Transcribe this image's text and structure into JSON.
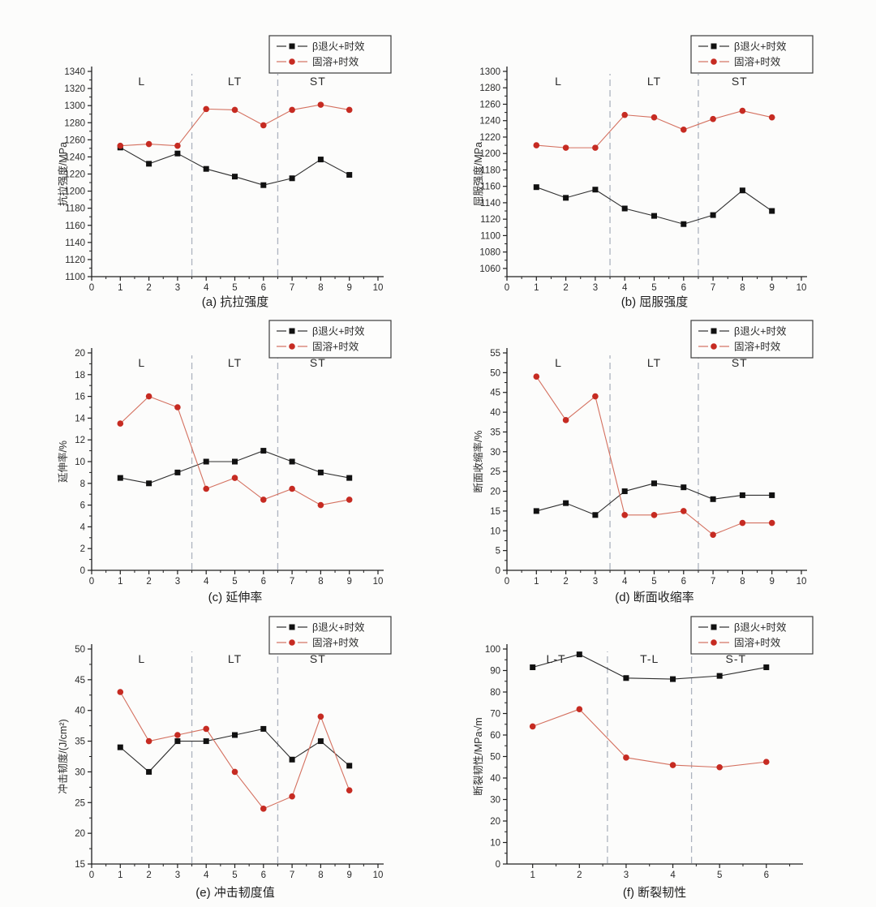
{
  "page": {
    "background": "#fcfcfb"
  },
  "colors": {
    "axis": "#1f1f1f",
    "text": "#2b2b2b",
    "divider": "#adb3bf",
    "black_line": "#2e2e2e",
    "black_marker": "#111111",
    "red_line": "#d4705f",
    "red_marker": "#c62b22",
    "legend_border": "#3b3b3b",
    "legend_bg": "#fdfdfc"
  },
  "chart_data": [
    {
      "id": "a",
      "type": "line",
      "caption": "(a) 抗拉强度",
      "ylabel": "抗拉强度/MPa",
      "xlim": [
        0,
        10
      ],
      "xticks": {
        "start": 0,
        "end": 10,
        "step": 1
      },
      "ylim": [
        1100,
        1340
      ],
      "yticks": {
        "start": 1100,
        "end": 1340,
        "step": 20
      },
      "dividers": [
        3.5,
        6.5
      ],
      "regions": [
        {
          "label": "L",
          "x": 1.75
        },
        {
          "label": "LT",
          "x": 5
        },
        {
          "label": "ST",
          "x": 7.9
        }
      ],
      "x": [
        1,
        2,
        3,
        4,
        5,
        6,
        7,
        8,
        9
      ],
      "series": [
        {
          "name": "β退火+时效",
          "marker": "square",
          "marker_color": "#111111",
          "line_color": "#2e2e2e",
          "values": [
            1251,
            1232,
            1244,
            1226,
            1217,
            1207,
            1215,
            1237,
            1219
          ]
        },
        {
          "name": "固溶+时效",
          "marker": "circle",
          "marker_color": "#c62b22",
          "line_color": "#d4705f",
          "values": [
            1253,
            1255,
            1253,
            1296,
            1295,
            1277,
            1295,
            1301,
            1295
          ]
        }
      ]
    },
    {
      "id": "b",
      "type": "line",
      "caption": "(b) 屈服强度",
      "ylabel": "屈服强度/MPa",
      "xlim": [
        0,
        10
      ],
      "xticks": {
        "start": 0,
        "end": 10,
        "step": 1
      },
      "ylim": [
        1050,
        1300
      ],
      "yticks": {
        "start": 1060,
        "end": 1300,
        "step": 20
      },
      "dividers": [
        3.5,
        6.5
      ],
      "regions": [
        {
          "label": "L",
          "x": 1.75
        },
        {
          "label": "LT",
          "x": 5
        },
        {
          "label": "ST",
          "x": 7.9
        }
      ],
      "x": [
        1,
        2,
        3,
        4,
        5,
        6,
        7,
        8,
        9
      ],
      "series": [
        {
          "name": "β退火+时效",
          "marker": "square",
          "marker_color": "#111111",
          "line_color": "#2e2e2e",
          "values": [
            1159,
            1146,
            1156,
            1133,
            1124,
            1114,
            1125,
            1155,
            1130
          ]
        },
        {
          "name": "固溶+时效",
          "marker": "circle",
          "marker_color": "#c62b22",
          "line_color": "#d4705f",
          "values": [
            1210,
            1207,
            1207,
            1247,
            1244,
            1229,
            1242,
            1252,
            1244
          ]
        }
      ]
    },
    {
      "id": "c",
      "type": "line",
      "caption": "(c) 延伸率",
      "ylabel": "延伸率/%",
      "xlim": [
        0,
        10
      ],
      "xticks": {
        "start": 0,
        "end": 10,
        "step": 1
      },
      "ylim": [
        0,
        20
      ],
      "yticks": {
        "start": 0,
        "end": 20,
        "step": 2
      },
      "dividers": [
        3.5,
        6.5
      ],
      "regions": [
        {
          "label": "L",
          "x": 1.75
        },
        {
          "label": "LT",
          "x": 5
        },
        {
          "label": "ST",
          "x": 7.9
        }
      ],
      "x": [
        1,
        2,
        3,
        4,
        5,
        6,
        7,
        8,
        9
      ],
      "series": [
        {
          "name": "β退火+时效",
          "marker": "square",
          "marker_color": "#111111",
          "line_color": "#2e2e2e",
          "values": [
            8.5,
            8,
            9,
            10,
            10,
            11,
            10,
            9,
            8.5
          ]
        },
        {
          "name": "固溶+时效",
          "marker": "circle",
          "marker_color": "#c62b22",
          "line_color": "#d4705f",
          "values": [
            13.5,
            16,
            15,
            7.5,
            8.5,
            6.5,
            7.5,
            6,
            6.5
          ]
        }
      ]
    },
    {
      "id": "d",
      "type": "line",
      "caption": "(d) 断面收缩率",
      "ylabel": "断面收缩率/%",
      "xlim": [
        0,
        10
      ],
      "xticks": {
        "start": 0,
        "end": 10,
        "step": 1
      },
      "ylim": [
        0,
        55
      ],
      "yticks": {
        "start": 0,
        "end": 55,
        "step": 5
      },
      "dividers": [
        3.5,
        6.5
      ],
      "regions": [
        {
          "label": "L",
          "x": 1.75
        },
        {
          "label": "LT",
          "x": 5
        },
        {
          "label": "ST",
          "x": 7.9
        }
      ],
      "x": [
        1,
        2,
        3,
        4,
        5,
        6,
        7,
        8,
        9
      ],
      "series": [
        {
          "name": "β退火+时效",
          "marker": "square",
          "marker_color": "#111111",
          "line_color": "#2e2e2e",
          "values": [
            15,
            17,
            14,
            20,
            22,
            21,
            18,
            19,
            19
          ]
        },
        {
          "name": "固溶+时效",
          "marker": "circle",
          "marker_color": "#c62b22",
          "line_color": "#d4705f",
          "values": [
            49,
            38,
            44,
            14,
            14,
            15,
            9,
            12,
            12
          ]
        }
      ]
    },
    {
      "id": "e",
      "type": "line",
      "caption": "(e) 冲击韧度值",
      "ylabel": "冲击韧度/(J/cm²)",
      "xlim": [
        0,
        10
      ],
      "xticks": {
        "start": 0,
        "end": 10,
        "step": 1
      },
      "ylim": [
        15,
        50
      ],
      "yticks": {
        "start": 15,
        "end": 50,
        "step": 5
      },
      "dividers": [
        3.5,
        6.5
      ],
      "regions": [
        {
          "label": "L",
          "x": 1.75
        },
        {
          "label": "LT",
          "x": 5
        },
        {
          "label": "ST",
          "x": 7.9
        }
      ],
      "x": [
        1,
        2,
        3,
        4,
        5,
        6,
        7,
        8,
        9
      ],
      "series": [
        {
          "name": "β退火+时效",
          "marker": "square",
          "marker_color": "#111111",
          "line_color": "#2e2e2e",
          "values": [
            34,
            30,
            35,
            35,
            36,
            37,
            32,
            35,
            31
          ]
        },
        {
          "name": "固溶+时效",
          "marker": "circle",
          "marker_color": "#c62b22",
          "line_color": "#d4705f",
          "values": [
            43,
            35,
            36,
            37,
            30,
            24,
            26,
            39,
            27
          ]
        }
      ]
    },
    {
      "id": "f",
      "type": "line",
      "caption": "(f) 断裂韧性",
      "ylabel": "断裂韧性/MPa√m",
      "xlim": [
        0.45,
        6.75
      ],
      "xticks": {
        "start": 1,
        "end": 6,
        "step": 1
      },
      "ylim": [
        0,
        100
      ],
      "yticks": {
        "start": 0,
        "end": 100,
        "step": 10
      },
      "dividers": [
        2.6,
        4.4
      ],
      "regions": [
        {
          "label": "L-T",
          "x": 1.5
        },
        {
          "label": "T-L",
          "x": 3.5
        },
        {
          "label": "S-T",
          "x": 5.35
        }
      ],
      "x": [
        1,
        2,
        3,
        4,
        5,
        6
      ],
      "series": [
        {
          "name": "β退火+时效",
          "marker": "square",
          "marker_color": "#111111",
          "line_color": "#2e2e2e",
          "values": [
            91.5,
            97.5,
            86.5,
            86,
            87.5,
            91.5
          ]
        },
        {
          "name": "固溶+时效",
          "marker": "circle",
          "marker_color": "#c62b22",
          "line_color": "#d4705f",
          "values": [
            64,
            72,
            49.5,
            46,
            45,
            47.5
          ]
        }
      ]
    }
  ]
}
